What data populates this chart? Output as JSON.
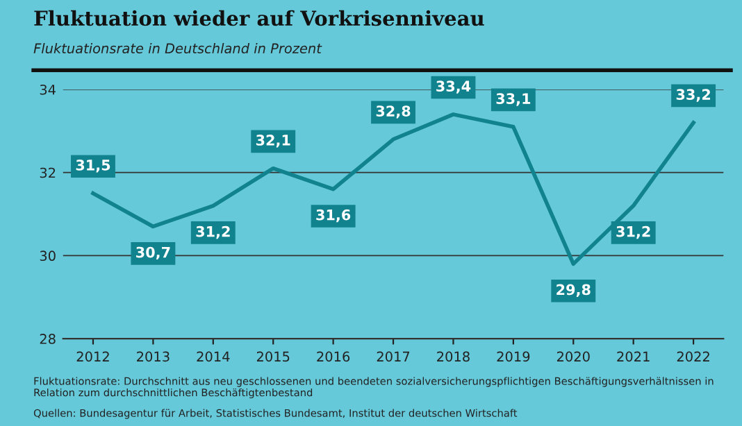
{
  "chart_data": {
    "type": "line",
    "title": "Fluktuation wieder auf Vorkrisenniveau",
    "subtitle": "Fluktuationsrate in Deutschland in Prozent",
    "categories": [
      "2012",
      "2013",
      "2014",
      "2015",
      "2016",
      "2017",
      "2018",
      "2019",
      "2020",
      "2021",
      "2022"
    ],
    "series": [
      {
        "color": "#11838e",
        "values": [
          31.5,
          30.7,
          31.2,
          32.1,
          31.6,
          32.8,
          33.4,
          33.1,
          29.8,
          31.2,
          33.2
        ],
        "value_labels": [
          "31,5",
          "30,7",
          "31,2",
          "32,1",
          "31,6",
          "32,8",
          "33,4",
          "33,1",
          "29,8",
          "31,2",
          "33,2"
        ]
      }
    ],
    "ylim": [
      28,
      34
    ],
    "yticks": [
      28,
      30,
      32,
      34
    ],
    "grid": "y",
    "marker": "none",
    "line_style": "solid",
    "legend": false,
    "annotations": [
      "Fluktuationsrate: Durchschnitt aus neu geschlossenen und beendeten sozialversicherungspflichtigen Beschäftigungsverhältnissen in Relation zum durchschnittlichen Beschäftigtenbestand",
      "Quellen: Bundesagentur für Arbeit, Statistisches Bundesamt, Institut der deutschen Wirtschaft"
    ]
  }
}
